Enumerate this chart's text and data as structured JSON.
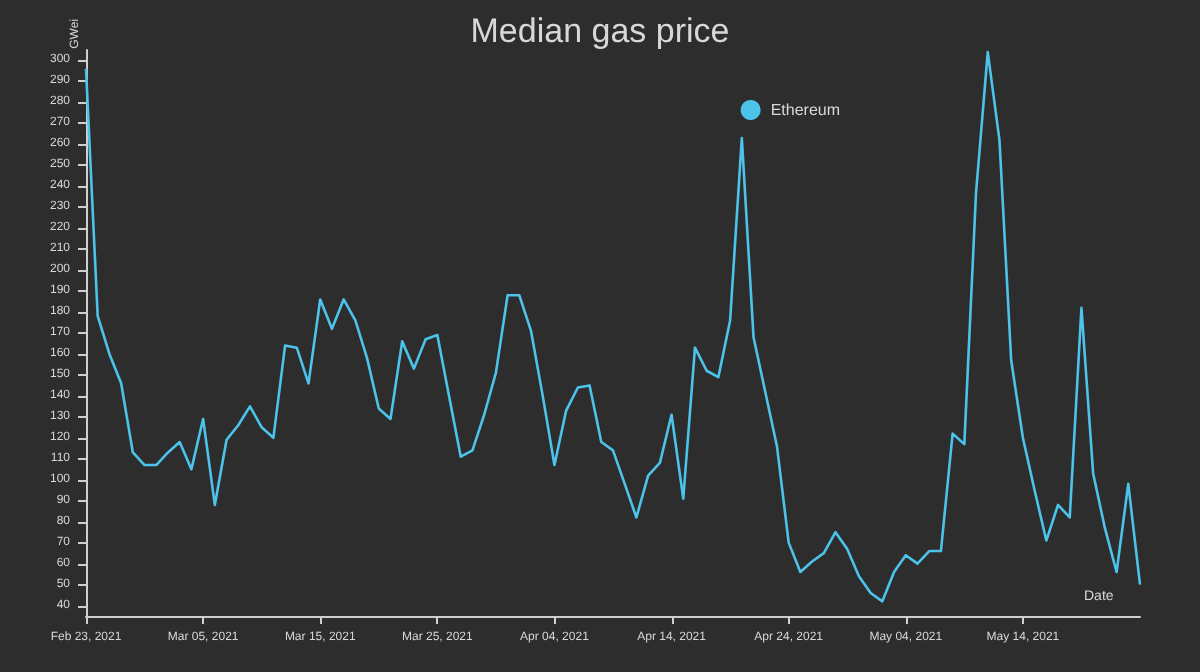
{
  "chart_data": {
    "type": "line",
    "title": "Median gas price",
    "xlabel": "Date",
    "ylabel": "GWei",
    "x": [
      "2021-02-23",
      "2021-02-24",
      "2021-02-25",
      "2021-02-26",
      "2021-02-27",
      "2021-02-28",
      "2021-03-01",
      "2021-03-02",
      "2021-03-03",
      "2021-03-04",
      "2021-03-05",
      "2021-03-06",
      "2021-03-07",
      "2021-03-08",
      "2021-03-09",
      "2021-03-10",
      "2021-03-11",
      "2021-03-12",
      "2021-03-13",
      "2021-03-14",
      "2021-03-15",
      "2021-03-16",
      "2021-03-17",
      "2021-03-18",
      "2021-03-19",
      "2021-03-20",
      "2021-03-21",
      "2021-03-22",
      "2021-03-23",
      "2021-03-24",
      "2021-03-25",
      "2021-03-26",
      "2021-03-27",
      "2021-03-28",
      "2021-03-29",
      "2021-03-30",
      "2021-03-31",
      "2021-04-01",
      "2021-04-02",
      "2021-04-03",
      "2021-04-04",
      "2021-04-05",
      "2021-04-06",
      "2021-04-07",
      "2021-04-08",
      "2021-04-09",
      "2021-04-10",
      "2021-04-11",
      "2021-04-12",
      "2021-04-13",
      "2021-04-14",
      "2021-04-15",
      "2021-04-16",
      "2021-04-17",
      "2021-04-18",
      "2021-04-19",
      "2021-04-20",
      "2021-04-21",
      "2021-04-22",
      "2021-04-23",
      "2021-04-24",
      "2021-04-25",
      "2021-04-26",
      "2021-04-27",
      "2021-04-28",
      "2021-04-29",
      "2021-04-30",
      "2021-05-01",
      "2021-05-02",
      "2021-05-03",
      "2021-05-04",
      "2021-05-05",
      "2021-05-06",
      "2021-05-07",
      "2021-05-08",
      "2021-05-09",
      "2021-05-10",
      "2021-05-11",
      "2021-05-12",
      "2021-05-13",
      "2021-05-14",
      "2021-05-15",
      "2021-05-16",
      "2021-05-17",
      "2021-05-18",
      "2021-05-19",
      "2021-05-20",
      "2021-05-21",
      "2021-05-22",
      "2021-05-23",
      "2021-05-24"
    ],
    "series": [
      {
        "name": "Ethereum",
        "color": "#4cc3ea",
        "values": [
          296,
          178,
          160,
          146,
          113,
          107,
          107,
          113,
          118,
          105,
          129,
          88,
          119,
          126,
          135,
          125,
          120,
          164,
          163,
          146,
          186,
          172,
          186,
          176,
          158,
          134,
          129,
          166,
          153,
          167,
          169,
          140,
          111,
          114,
          131,
          151,
          188,
          188,
          171,
          140,
          107,
          133,
          144,
          145,
          118,
          114,
          98,
          82,
          102,
          108,
          131,
          91,
          163,
          152,
          149,
          176,
          263,
          168,
          142,
          116,
          70,
          56,
          61,
          65,
          75,
          67,
          54,
          46,
          42,
          56,
          64,
          60,
          66,
          66,
          122,
          117,
          237,
          304,
          262,
          157,
          120,
          95,
          71,
          88,
          82,
          182,
          103,
          77,
          56,
          98,
          50
        ]
      }
    ],
    "xlim": [
      "2021-02-23",
      "2021-05-24"
    ],
    "xticks": [
      {
        "value": "2021-02-23",
        "label": "Feb 23, 2021"
      },
      {
        "value": "2021-03-05",
        "label": "Mar 05, 2021"
      },
      {
        "value": "2021-03-15",
        "label": "Mar 15, 2021"
      },
      {
        "value": "2021-03-25",
        "label": "Mar 25, 2021"
      },
      {
        "value": "2021-04-04",
        "label": "Apr 04, 2021"
      },
      {
        "value": "2021-04-14",
        "label": "Apr 14, 2021"
      },
      {
        "value": "2021-04-24",
        "label": "Apr 24, 2021"
      },
      {
        "value": "2021-05-04",
        "label": "May 04, 2021"
      },
      {
        "value": "2021-05-14",
        "label": "May 14, 2021"
      }
    ],
    "ylim": [
      35,
      305
    ],
    "yticks": [
      40,
      50,
      60,
      70,
      80,
      90,
      100,
      110,
      120,
      130,
      140,
      150,
      160,
      170,
      180,
      190,
      200,
      210,
      220,
      230,
      240,
      250,
      260,
      270,
      280,
      290,
      300
    ],
    "legend": "top right",
    "line_style": "solid",
    "marker": "none"
  }
}
